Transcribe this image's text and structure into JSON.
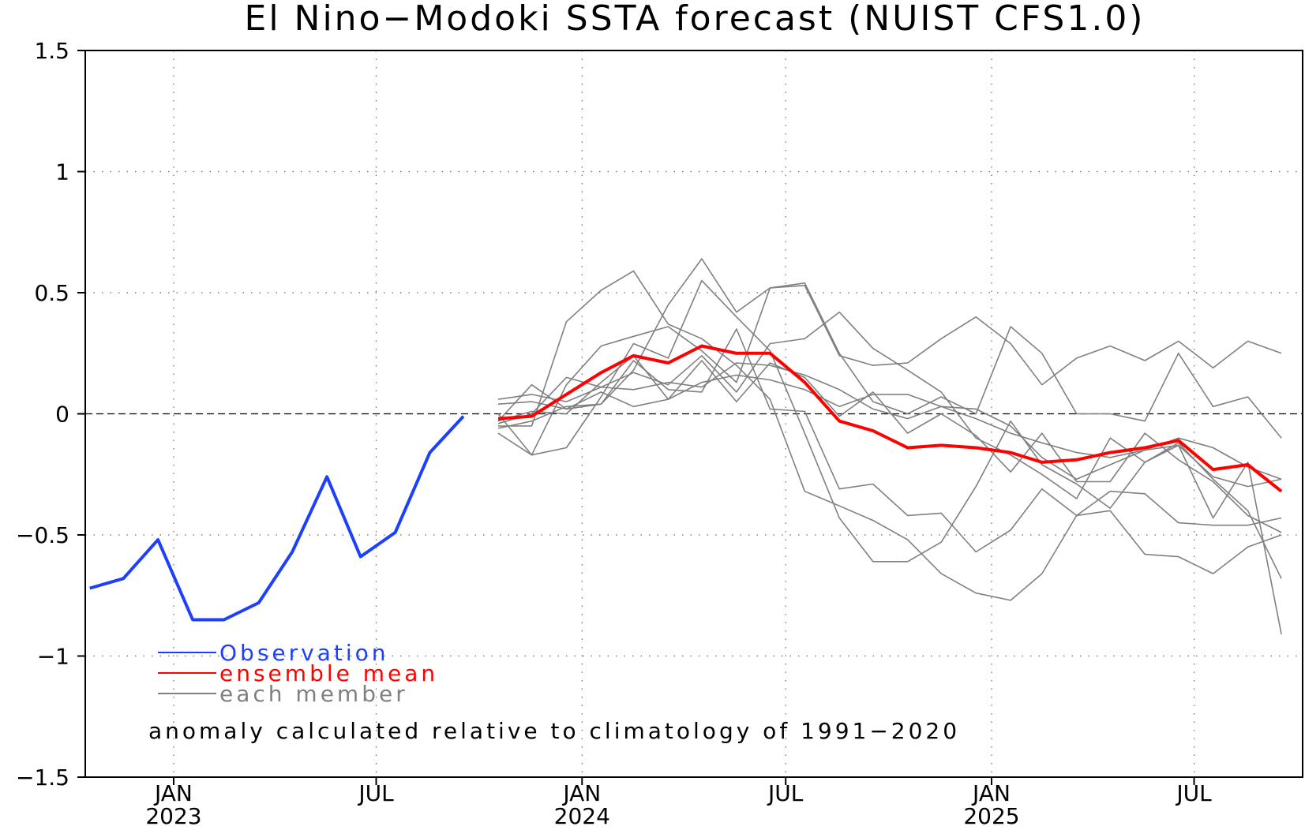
{
  "chart_data": {
    "type": "line",
    "title": "El Nino−Modoki SSTA forecast (NUIST CFS1.0)",
    "xlabel": "",
    "ylabel": "",
    "ylim": [
      -1.5,
      1.5
    ],
    "yticks": [
      1.5,
      1,
      0.5,
      0,
      -0.5,
      -1,
      -1.5
    ],
    "ytick_labels": [
      "1.5",
      "1",
      "0.5",
      "0",
      "−0.5",
      "−1",
      "−1.5"
    ],
    "xlim": [
      "2022-10-28",
      "2025-10-20"
    ],
    "xticks": [
      {
        "date": "2023-01-15",
        "label": "JAN",
        "year": "2023"
      },
      {
        "date": "2023-07-15",
        "label": "JUL",
        "year": ""
      },
      {
        "date": "2024-01-15",
        "label": "JAN",
        "year": "2024"
      },
      {
        "date": "2024-07-15",
        "label": "JUL",
        "year": ""
      },
      {
        "date": "2025-01-15",
        "label": "JAN",
        "year": "2025"
      },
      {
        "date": "2025-07-15",
        "label": "JUL",
        "year": ""
      }
    ],
    "grid": true,
    "zero_line": true,
    "legend_position": "bottom-left",
    "annotation": "anomaly calculated relative to climatology of 1991−2020",
    "obs_dates": [
      "2022-11-01",
      "2022-12-01",
      "2023-01-01",
      "2023-02-01",
      "2023-03-01",
      "2023-04-01",
      "2023-05-01",
      "2023-06-01",
      "2023-07-01",
      "2023-08-01",
      "2023-09-01",
      "2023-10-01"
    ],
    "forecast_dates": [
      "2023-11-01",
      "2023-12-01",
      "2024-01-01",
      "2024-02-01",
      "2024-03-01",
      "2024-04-01",
      "2024-05-01",
      "2024-06-01",
      "2024-07-01",
      "2024-08-01",
      "2024-09-01",
      "2024-10-01",
      "2024-11-01",
      "2024-12-01",
      "2025-01-01",
      "2025-02-01",
      "2025-03-01",
      "2025-04-01",
      "2025-05-01",
      "2025-06-01",
      "2025-07-01",
      "2025-08-01",
      "2025-09-01",
      "2025-10-01"
    ],
    "series": [
      {
        "name": "Observation",
        "color": "#1f3fff",
        "kind": "observation",
        "values": [
          -0.72,
          -0.68,
          -0.52,
          -0.85,
          -0.85,
          -0.78,
          -0.57,
          -0.26,
          -0.59,
          -0.49,
          -0.16,
          -0.01
        ]
      },
      {
        "name": "ensemble mean",
        "color": "#ff0000",
        "kind": "mean",
        "values": [
          -0.02,
          -0.01,
          0.08,
          0.17,
          0.24,
          0.21,
          0.28,
          0.25,
          0.25,
          0.13,
          -0.03,
          -0.07,
          -0.14,
          -0.13,
          -0.14,
          -0.16,
          -0.2,
          -0.19,
          -0.16,
          -0.14,
          -0.11,
          -0.23,
          -0.21,
          -0.32
        ]
      },
      {
        "name": "each member",
        "color": "#808080",
        "kind": "members",
        "members": [
          [
            -0.05,
            -0.05,
            0.38,
            0.51,
            0.59,
            0.37,
            0.31,
            0.2,
            0.06,
            -0.32,
            -0.38,
            -0.44,
            -0.52,
            -0.66,
            -0.74,
            -0.77,
            -0.66,
            -0.42,
            -0.4,
            -0.58,
            -0.59,
            -0.66,
            -0.55,
            -0.5
          ],
          [
            0.06,
            0.08,
            0.05,
            0.11,
            0.1,
            0.13,
            0.11,
            0.21,
            0.2,
            0.16,
            0.1,
            0.02,
            -0.02,
            0.03,
            0.02,
            -0.05,
            -0.18,
            -0.27,
            -0.21,
            -0.15,
            -0.13,
            -0.26,
            -0.3,
            -0.27
          ],
          [
            -0.03,
            0.12,
            0.02,
            0.04,
            0.18,
            0.45,
            0.64,
            0.42,
            0.52,
            0.53,
            0.24,
            0.2,
            0.21,
            0.31,
            0.4,
            0.29,
            0.12,
            0.23,
            0.28,
            0.22,
            0.3,
            0.19,
            0.3,
            0.25
          ],
          [
            -0.08,
            -0.17,
            0.12,
            0.28,
            0.32,
            0.36,
            0.26,
            0.13,
            0.52,
            0.54,
            0.25,
            0.05,
            0.0,
            0.07,
            0.0,
            0.36,
            0.25,
            0.0,
            0.0,
            -0.03,
            0.25,
            0.03,
            0.07,
            -0.1
          ],
          [
            0.0,
            -0.17,
            -0.14,
            0.07,
            0.29,
            0.23,
            0.55,
            0.4,
            0.26,
            -0.08,
            -0.43,
            -0.61,
            -0.61,
            -0.53,
            -0.3,
            -0.03,
            -0.21,
            -0.29,
            -0.39,
            -0.2,
            -0.12,
            -0.27,
            -0.4,
            -0.68
          ],
          [
            -0.04,
            0.0,
            0.15,
            0.11,
            0.17,
            0.12,
            0.24,
            0.09,
            0.29,
            0.31,
            0.42,
            0.27,
            0.18,
            0.09,
            -0.1,
            -0.17,
            -0.25,
            -0.35,
            -0.1,
            -0.2,
            -0.13,
            -0.43,
            -0.2,
            -0.91
          ],
          [
            0.04,
            0.05,
            0.02,
            0.09,
            0.03,
            0.06,
            0.13,
            0.16,
            0.14,
            0.1,
            0.03,
            0.08,
            0.08,
            0.03,
            -0.02,
            -0.08,
            -0.12,
            -0.16,
            -0.18,
            -0.15,
            -0.1,
            -0.14,
            -0.22,
            -0.27
          ],
          [
            -0.06,
            -0.03,
            0.03,
            0.04,
            0.22,
            0.1,
            0.09,
            0.35,
            0.02,
            0.01,
            -0.31,
            -0.29,
            -0.42,
            -0.41,
            -0.57,
            -0.48,
            -0.31,
            -0.42,
            -0.32,
            -0.33,
            -0.45,
            -0.46,
            -0.46,
            -0.43
          ],
          [
            -0.03,
            0.01,
            0.0,
            0.13,
            0.24,
            0.06,
            0.22,
            0.05,
            0.21,
            0.15,
            -0.01,
            0.09,
            -0.08,
            0.0,
            -0.09,
            -0.24,
            -0.08,
            -0.28,
            -0.28,
            -0.08,
            -0.19,
            -0.28,
            -0.42,
            -0.49
          ]
        ]
      }
    ]
  }
}
